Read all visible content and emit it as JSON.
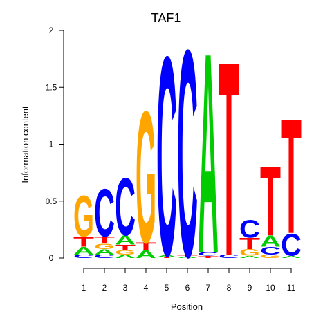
{
  "chart_data": {
    "type": "sequence-logo",
    "title": "TAF1",
    "xlabel": "Position",
    "ylabel": "Information content",
    "ylim": [
      0,
      2
    ],
    "yticks": [
      0,
      0.5,
      1,
      1.5,
      2
    ],
    "ytick_labels": [
      "0",
      "0.5",
      "1",
      "1.5",
      "2"
    ],
    "positions": [
      "1",
      "2",
      "3",
      "4",
      "5",
      "6",
      "7",
      "8",
      "9",
      "10",
      "11"
    ],
    "colors": {
      "A": "#00cc00",
      "C": "#0000ff",
      "G": "#ffa500",
      "T": "#ff0000"
    },
    "stacks": [
      [
        {
          "l": "C",
          "v": 0.03
        },
        {
          "l": "A",
          "v": 0.07
        },
        {
          "l": "T",
          "v": 0.09
        },
        {
          "l": "G",
          "v": 0.37
        }
      ],
      [
        {
          "l": "C",
          "v": 0.03
        },
        {
          "l": "A",
          "v": 0.05
        },
        {
          "l": "G",
          "v": 0.05
        },
        {
          "l": "T",
          "v": 0.06
        },
        {
          "l": "C",
          "v": 0.43
        }
      ],
      [
        {
          "l": "A",
          "v": 0.03
        },
        {
          "l": "G",
          "v": 0.04
        },
        {
          "l": "T",
          "v": 0.05
        },
        {
          "l": "A",
          "v": 0.08
        },
        {
          "l": "C",
          "v": 0.52
        }
      ],
      [
        {
          "l": "A",
          "v": 0.07
        },
        {
          "l": "T",
          "v": 0.07
        },
        {
          "l": "G",
          "v": 1.19
        }
      ],
      [
        {
          "l": "T",
          "v": 0.01
        },
        {
          "l": "A",
          "v": 0.02
        },
        {
          "l": "C",
          "v": 1.8
        }
      ],
      [
        {
          "l": "A",
          "v": 0.01
        },
        {
          "l": "T",
          "v": 0.01
        },
        {
          "l": "C",
          "v": 1.87
        }
      ],
      [
        {
          "l": "T",
          "v": 0.02
        },
        {
          "l": "C",
          "v": 0.03
        },
        {
          "l": "A",
          "v": 1.81
        }
      ],
      [
        {
          "l": "C",
          "v": 0.03
        },
        {
          "l": "T",
          "v": 1.75
        }
      ],
      [
        {
          "l": "A",
          "v": 0.02
        },
        {
          "l": "G",
          "v": 0.06
        },
        {
          "l": "T",
          "v": 0.1
        },
        {
          "l": "C",
          "v": 0.16
        }
      ],
      [
        {
          "l": "G",
          "v": 0.03
        },
        {
          "l": "C",
          "v": 0.07
        },
        {
          "l": "A",
          "v": 0.1
        },
        {
          "l": "T",
          "v": 0.63
        }
      ],
      [
        {
          "l": "A",
          "v": 0.02
        },
        {
          "l": "C",
          "v": 0.2
        },
        {
          "l": "T",
          "v": 1.04
        }
      ]
    ]
  }
}
